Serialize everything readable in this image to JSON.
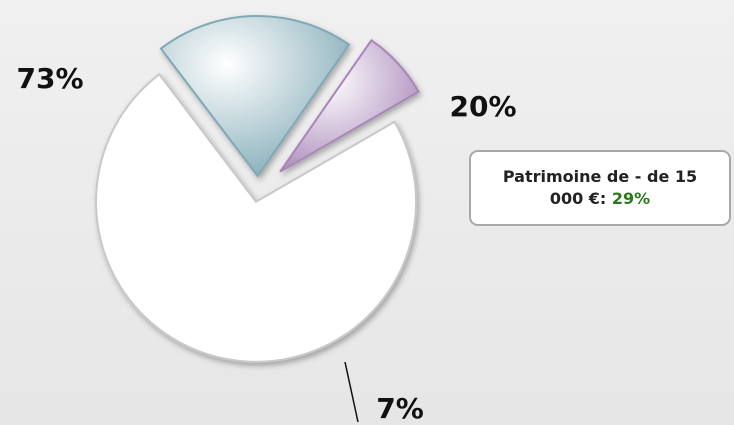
{
  "chart_data": {
    "type": "pie",
    "categories": [
      null,
      null,
      null
    ],
    "values": [
      73,
      20,
      7
    ],
    "value_labels": [
      "73%",
      "20%",
      "7%"
    ],
    "colors": [
      "#ffffff",
      "#7fa9b5",
      "#a886b8"
    ],
    "annotation": {
      "text": "Patrimoine de - de 15 000 €:",
      "highlight": "29%",
      "highlight_color": "#2a7a1a"
    }
  }
}
